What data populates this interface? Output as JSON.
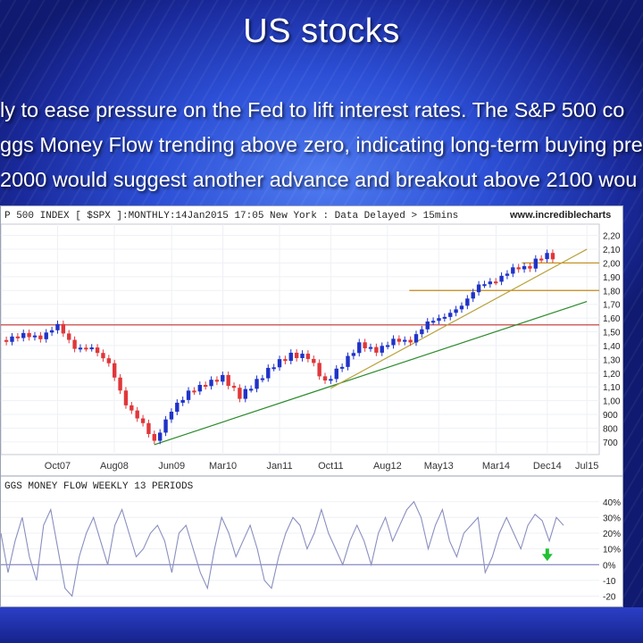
{
  "slide": {
    "title": "US stocks",
    "lines": [
      "ly to ease pressure on the Fed to lift interest rates. The S&P 500 co",
      "ggs Money Flow trending above zero, indicating long-term buying pres",
      "2000 would suggest another advance and breakout above 2100 wou"
    ]
  },
  "chart_data": [
    {
      "type": "candlestick",
      "title": "P 500 INDEX [ $SPX ]:MONTHLY:14Jan2015 17:05 New York : Data Delayed > 15mins",
      "source": "www.incrediblecharts",
      "x_tick_labels": [
        "Oct07",
        "Aug08",
        "Jun09",
        "Mar10",
        "Jan11",
        "Oct11",
        "Aug12",
        "May13",
        "Mar14",
        "Dec14",
        "Jul15"
      ],
      "y_tick_labels": [
        "2,20",
        "2,10",
        "2,00",
        "1,90",
        "1,80",
        "1,70",
        "1,60",
        "1,50",
        "1,40",
        "1,30",
        "1,20",
        "1,10",
        "1,00",
        "900",
        "800",
        "700"
      ],
      "ylim": [
        660,
        2230
      ],
      "series": {
        "x": [
          "2007-01",
          "2007-04",
          "2007-07",
          "2007-10",
          "2008-01",
          "2008-04",
          "2008-07",
          "2008-10",
          "2009-01",
          "2009-03",
          "2009-06",
          "2009-09",
          "2009-12",
          "2010-03",
          "2010-06",
          "2010-09",
          "2010-12",
          "2011-03",
          "2011-06",
          "2011-09",
          "2011-12",
          "2012-03",
          "2012-06",
          "2012-09",
          "2012-12",
          "2013-03",
          "2013-06",
          "2013-09",
          "2013-12",
          "2014-03",
          "2014-06",
          "2014-09",
          "2014-10",
          "2014-12",
          "2015-01"
        ],
        "close": [
          1440,
          1480,
          1455,
          1550,
          1380,
          1385,
          1270,
          970,
          830,
          700,
          930,
          1060,
          1120,
          1170,
          1030,
          1140,
          1260,
          1330,
          1320,
          1130,
          1260,
          1410,
          1360,
          1440,
          1430,
          1570,
          1610,
          1690,
          1840,
          1870,
          1960,
          1970,
          2020,
          2060,
          2040
        ]
      },
      "reference_lines": [
        {
          "label": "horizontal resistance/support",
          "y": 1550,
          "color": "#c0302f"
        },
        {
          "label": "horizontal support",
          "y": 1800,
          "color": "#c28a1a"
        },
        {
          "label": "horizontal support",
          "y": 2000,
          "color": "#c28a1a"
        }
      ],
      "trendlines": [
        {
          "color": "#2a8a2a",
          "from": [
            "2009-03",
            680
          ],
          "to": [
            "2015-07",
            1720
          ]
        },
        {
          "color": "#b9a23a",
          "from": [
            "2011-10",
            1090
          ],
          "to": [
            "2015-07",
            2100
          ]
        }
      ]
    },
    {
      "type": "line",
      "title": "GGS MONEY FLOW WEEKLY 13 PERIODS",
      "y_tick_labels": [
        "40%",
        "30%",
        "20%",
        "10%",
        "0%",
        "-10",
        "-20"
      ],
      "ylim": [
        -22,
        45
      ],
      "signal": {
        "label": "buy arrow",
        "x": "Dec14",
        "color": "#22c032"
      },
      "series": {
        "values": [
          20,
          -5,
          15,
          30,
          5,
          -10,
          25,
          35,
          10,
          -15,
          -20,
          5,
          20,
          30,
          15,
          0,
          25,
          35,
          20,
          5,
          10,
          20,
          25,
          15,
          -5,
          20,
          25,
          10,
          -5,
          -15,
          10,
          30,
          20,
          5,
          15,
          25,
          10,
          -10,
          -15,
          5,
          20,
          30,
          25,
          10,
          20,
          35,
          20,
          10,
          0,
          15,
          25,
          15,
          0,
          20,
          30,
          15,
          25,
          35,
          40,
          30,
          10,
          25,
          35,
          15,
          5,
          20,
          25,
          30,
          -5,
          5,
          20,
          30,
          20,
          10,
          25,
          32,
          28,
          15,
          30,
          25
        ]
      }
    }
  ]
}
